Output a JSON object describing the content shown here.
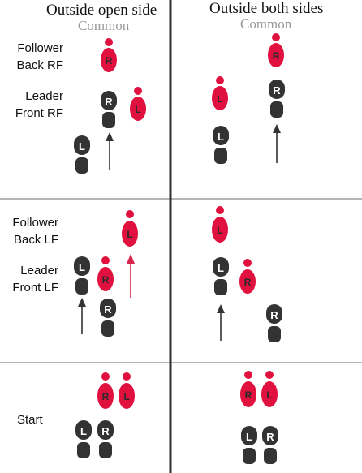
{
  "columns": {
    "left": {
      "title": "Outside open side",
      "subtitle": "Common"
    },
    "right": {
      "title": "Outside both sides",
      "subtitle": "Common"
    }
  },
  "rows": {
    "top": {
      "follower_label": [
        "Follower",
        "Back RF"
      ],
      "leader_label": [
        "Leader",
        "Front RF"
      ]
    },
    "middle": {
      "follower_label": [
        "Follower",
        "Back LF"
      ],
      "leader_label": [
        "Leader",
        "Front LF"
      ]
    },
    "bottom": {
      "start_label": "Start"
    }
  },
  "feet": {
    "left_foot_letter": "L",
    "right_foot_letter": "R"
  },
  "colors": {
    "follower_foot": "#e0113f",
    "leader_foot": "#333333",
    "arrow_dark": "#333333",
    "arrow_red": "#d8254b",
    "divider_gray": "#b5b5b5",
    "divider_center": "#2e2e2e"
  }
}
